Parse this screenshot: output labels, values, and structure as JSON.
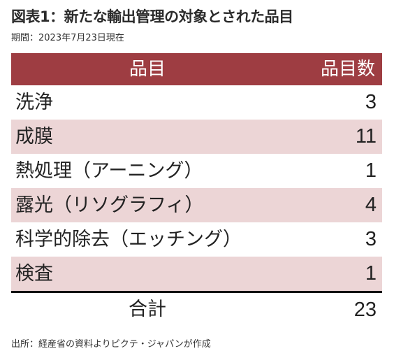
{
  "title": "図表1：新たな輸出管理の対象とされた品目",
  "subtitle": "期間：2023年7月23日現在",
  "table": {
    "header": {
      "item": "品目",
      "count": "品目数"
    },
    "rows": [
      {
        "name": "洗浄",
        "count": "3"
      },
      {
        "name": "成膜",
        "count": "11"
      },
      {
        "name": "熱処理（アーニング）",
        "count": "1"
      },
      {
        "name": "露光（リソグラフィ）",
        "count": "4"
      },
      {
        "name": "科学的除去（エッチング）",
        "count": "3"
      },
      {
        "name": "検査",
        "count": "1"
      }
    ],
    "total": {
      "label": "合計",
      "count": "23"
    }
  },
  "source": "出所：経産省の資料よりピクテ・ジャパンが作成",
  "colors": {
    "header_bg": "#9e3d42",
    "shaded_row_bg": "#ecd5d6",
    "header_text": "#ffffff"
  }
}
